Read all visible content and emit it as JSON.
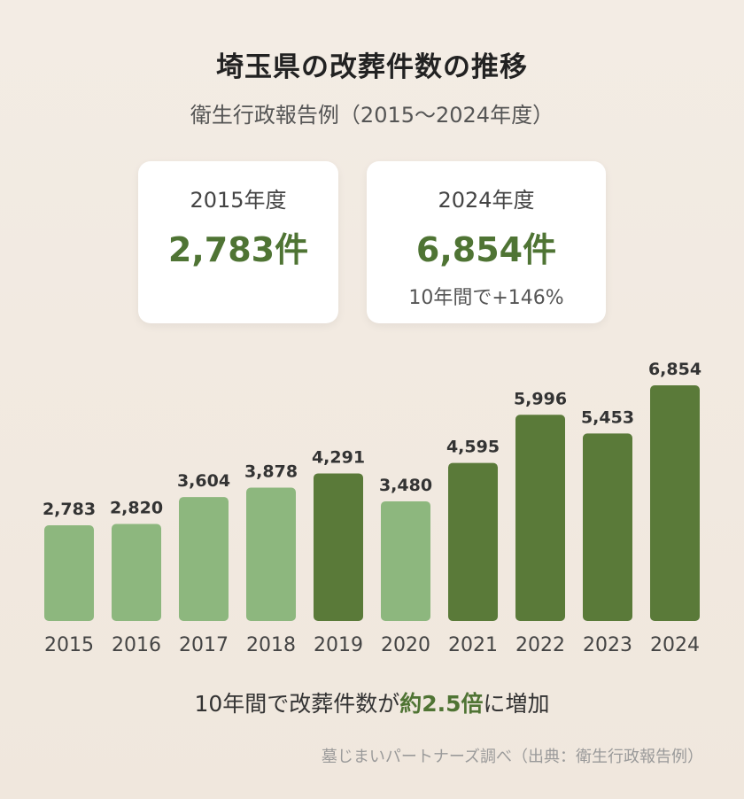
{
  "header": {
    "title": "埼玉県の改葬件数の推移",
    "subtitle": "衛生行政報告例（2015〜2024年度）"
  },
  "cards": {
    "start": {
      "year": "2015年度",
      "value": "2,783件"
    },
    "end": {
      "year": "2024年度",
      "value": "6,854件",
      "note": "10年間で+146%"
    }
  },
  "chart_data": {
    "type": "bar",
    "categories": [
      "2015",
      "2016",
      "2017",
      "2018",
      "2019",
      "2020",
      "2021",
      "2022",
      "2023",
      "2024"
    ],
    "values": [
      2783,
      2820,
      3604,
      3878,
      4291,
      3480,
      4595,
      5996,
      5453,
      6854
    ],
    "value_labels": [
      "2,783",
      "2,820",
      "3,604",
      "3,878",
      "4,291",
      "3,480",
      "4,595",
      "5,996",
      "5,453",
      "6,854"
    ],
    "colors": [
      "#8db77e",
      "#8db77e",
      "#8db77e",
      "#8db77e",
      "#5a7a39",
      "#8db77e",
      "#5a7a39",
      "#5a7a39",
      "#5a7a39",
      "#5a7a39"
    ],
    "ylim": [
      0,
      6854
    ]
  },
  "conclusion": {
    "prefix": "10年間で改葬件数が",
    "highlight": "約2.5倍",
    "suffix": "に増加"
  },
  "source": "墓じまいパートナーズ調べ（出典：衛生行政報告例）"
}
